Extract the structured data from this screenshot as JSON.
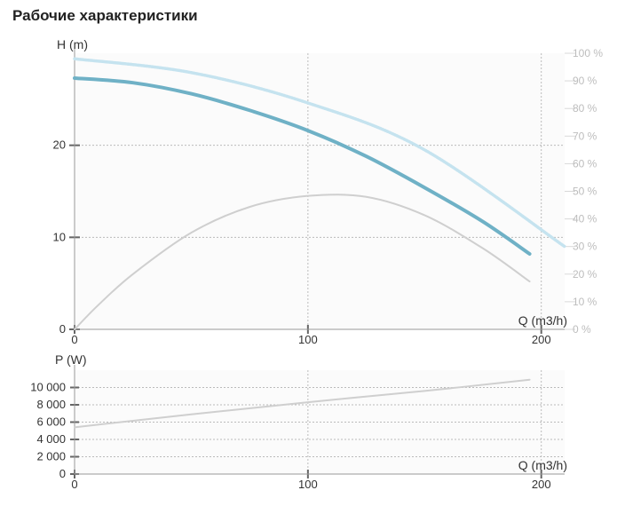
{
  "title": "Рабочие характеристики",
  "colors": {
    "head": "#6fb1c6",
    "efficiency": "#c5e3ef",
    "npsh": "#cfcfcf",
    "power": "#cfcfcf",
    "grid": "#bbbbbb"
  },
  "chart_data": [
    {
      "type": "line",
      "ylabel": "H (m)",
      "xlabel": "Q (m3/h)",
      "xlim": [
        0,
        210
      ],
      "ylim": [
        0,
        30
      ],
      "xticks": [
        0,
        100,
        200
      ],
      "xtick_labels": [
        "0",
        "100",
        "200"
      ],
      "yticks": [
        0,
        10,
        20
      ],
      "ytick_labels": [
        "0",
        "10",
        "20"
      ],
      "y2lim": [
        0,
        100
      ],
      "y2ticks": [
        0,
        10,
        20,
        30,
        40,
        50,
        60,
        70,
        80,
        90,
        100
      ],
      "y2tick_labels": [
        "0 %",
        "10 %",
        "20 %",
        "30 %",
        "40 %",
        "50 %",
        "60 %",
        "70 %",
        "80 %",
        "90 %",
        "100 %"
      ],
      "grid": true,
      "series": [
        {
          "axis": "left",
          "x": [
            0,
            25,
            50,
            75,
            100,
            125,
            150,
            175,
            195
          ],
          "y": [
            27.3,
            26.8,
            25.6,
            23.8,
            21.6,
            18.8,
            15.4,
            11.7,
            8.2
          ]
        },
        {
          "axis": "right",
          "x": [
            0,
            50,
            100,
            150,
            210
          ],
          "y": [
            98,
            93,
            82,
            65,
            30
          ]
        },
        {
          "axis": "left",
          "x": [
            0,
            10,
            25,
            50,
            75,
            100,
            125,
            150,
            175,
            195
          ],
          "y": [
            0,
            2.6,
            6.0,
            10.5,
            13.3,
            14.5,
            14.4,
            12.4,
            8.8,
            5.2
          ]
        }
      ]
    },
    {
      "type": "line",
      "ylabel": "P (W)",
      "xlabel": "Q (m3/h)",
      "xlim": [
        0,
        210
      ],
      "ylim": [
        0,
        12000
      ],
      "xticks": [
        0,
        100,
        200
      ],
      "xtick_labels": [
        "0",
        "100",
        "200"
      ],
      "yticks": [
        0,
        2000,
        4000,
        6000,
        8000,
        10000
      ],
      "ytick_labels": [
        "0",
        "2 000",
        "4 000",
        "6 000",
        "8 000",
        "10 000"
      ],
      "grid": true,
      "series": [
        {
          "x": [
            0,
            50,
            100,
            150,
            195
          ],
          "y": [
            5400,
            6900,
            8300,
            9600,
            10900
          ]
        }
      ]
    }
  ]
}
